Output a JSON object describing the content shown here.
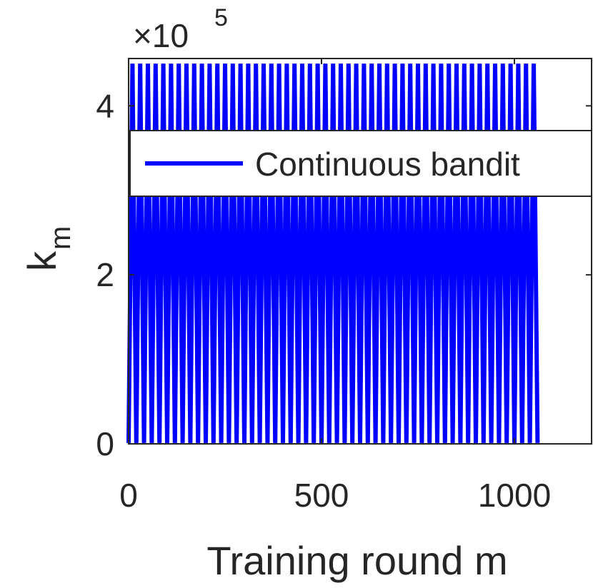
{
  "chart_data": {
    "type": "line",
    "xlabel": "Training round m",
    "ylabel": "k",
    "ylabel_subscript": "m",
    "y_multiplier": "×10",
    "y_multiplier_exponent": "5",
    "xlim": [
      0,
      1200
    ],
    "ylim": [
      0,
      456000
    ],
    "xticks": [
      0,
      500,
      1000
    ],
    "yticks": [
      {
        "value": 0,
        "label": "0"
      },
      {
        "value": 200000,
        "label": "2"
      },
      {
        "value": 400000,
        "label": "4"
      }
    ],
    "legend": "north",
    "series": [
      {
        "name": "Continuous bandit",
        "color": "#0000ff",
        "x": [
          0,
          10,
          20,
          30,
          40,
          50,
          60,
          70,
          80,
          90,
          100,
          110,
          120,
          130,
          140,
          150,
          160,
          170,
          180,
          190,
          200,
          210,
          220,
          230,
          240,
          250,
          260,
          270,
          280,
          290,
          300,
          310,
          320,
          330,
          340,
          350,
          360,
          370,
          380,
          390,
          400,
          410,
          420,
          430,
          440,
          450,
          460,
          470,
          480,
          490,
          500,
          510,
          520,
          530,
          540,
          550,
          560,
          570,
          580,
          590,
          600,
          610,
          620,
          630,
          640,
          650,
          660,
          670,
          680,
          690,
          700,
          710,
          720,
          730,
          740,
          750,
          760,
          770,
          780,
          790,
          800,
          810,
          820,
          830,
          840,
          850,
          860,
          870,
          880,
          890,
          900,
          910,
          920,
          930,
          940,
          950,
          960,
          970,
          980,
          990,
          1000,
          1010,
          1020,
          1030,
          1040,
          1050,
          1060
        ],
        "values": [
          1000,
          450000,
          1000,
          450000,
          1000,
          450000,
          1000,
          450000,
          1000,
          450000,
          1000,
          450000,
          1000,
          450000,
          1000,
          450000,
          1000,
          450000,
          1000,
          450000,
          1000,
          450000,
          1000,
          450000,
          1000,
          450000,
          1000,
          450000,
          1000,
          450000,
          1000,
          450000,
          1000,
          450000,
          1000,
          450000,
          1000,
          450000,
          1000,
          450000,
          1000,
          450000,
          1000,
          450000,
          1000,
          450000,
          1000,
          450000,
          1000,
          450000,
          1000,
          450000,
          1000,
          450000,
          1000,
          450000,
          1000,
          450000,
          1000,
          450000,
          1000,
          450000,
          1000,
          450000,
          1000,
          450000,
          1000,
          450000,
          1000,
          450000,
          1000,
          450000,
          1000,
          450000,
          1000,
          450000,
          1000,
          450000,
          1000,
          450000,
          1000,
          450000,
          1000,
          450000,
          1000,
          450000,
          1000,
          450000,
          1000,
          450000,
          1000,
          450000,
          1000,
          450000,
          1000,
          450000,
          1000,
          450000,
          1000,
          450000,
          1000,
          450000,
          1000,
          450000,
          1000,
          450000,
          1000
        ]
      }
    ]
  }
}
